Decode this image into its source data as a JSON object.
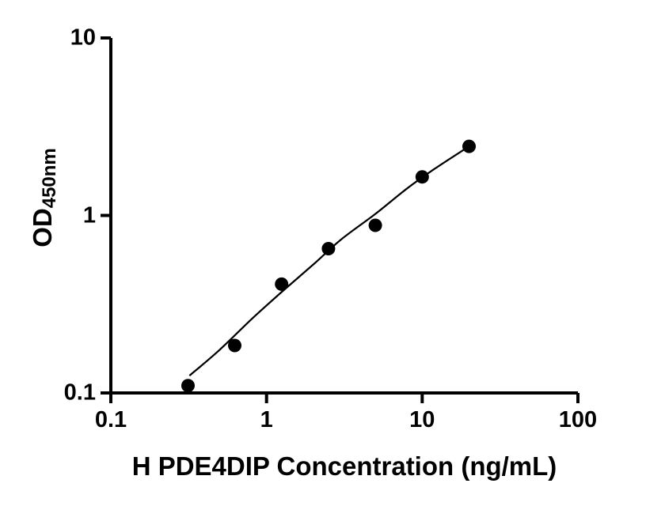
{
  "figure": {
    "background": "#ffffff",
    "axis_color": "#000000",
    "tick_color": "#000000",
    "marker_color": "#000000",
    "curve_color": "#000000"
  },
  "chart_data": {
    "type": "scatter",
    "title": "",
    "xlabel": "H PDE4DIP Concentration (ng/mL)",
    "ylabel_main": "OD",
    "ylabel_sub": "450nm",
    "x_scale": "log",
    "y_scale": "log",
    "xlim": [
      0.1,
      100
    ],
    "ylim": [
      0.1,
      10
    ],
    "grid": false,
    "legend": "none",
    "x_ticks": [
      0.1,
      1,
      10,
      100
    ],
    "x_tick_labels": [
      "0.1",
      "1",
      "10",
      "100"
    ],
    "y_ticks": [
      0.1,
      1,
      10
    ],
    "y_tick_labels": [
      "0.1",
      "1",
      "10"
    ],
    "series": [
      {
        "name": "standard-points",
        "type": "scatter",
        "x": [
          0.313,
          0.625,
          1.25,
          2.5,
          5,
          10,
          20
        ],
        "y": [
          0.11,
          0.185,
          0.41,
          0.65,
          0.88,
          1.65,
          2.45
        ]
      },
      {
        "name": "fit-curve",
        "type": "line",
        "x": [
          0.32,
          0.5,
          0.8,
          1.25,
          2,
          3,
          5,
          8,
          12,
          20
        ],
        "y": [
          0.125,
          0.175,
          0.26,
          0.37,
          0.53,
          0.73,
          1.02,
          1.42,
          1.83,
          2.45
        ]
      }
    ]
  }
}
